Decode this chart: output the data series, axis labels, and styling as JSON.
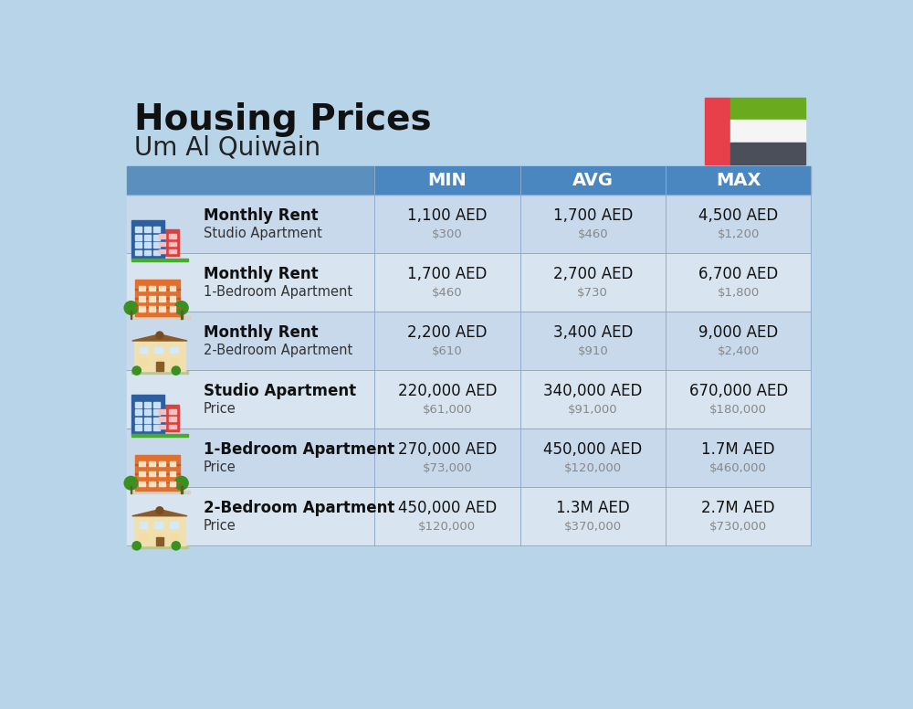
{
  "title": "Housing Prices",
  "subtitle": "Um Al Quiwain",
  "background_color": "#b8d4e8",
  "header_bg_color": "#4a86c0",
  "header_text_color": "#ffffff",
  "row_bg_even": "#c8d9ec",
  "row_bg_odd": "#d8e5f0",
  "col_labels": [
    "MIN",
    "AVG",
    "MAX"
  ],
  "rows": [
    {
      "label_bold": "Monthly Rent",
      "label_sub": "Studio Apartment",
      "min_aed": "1,100 AED",
      "min_usd": "$300",
      "avg_aed": "1,700 AED",
      "avg_usd": "$460",
      "max_aed": "4,500 AED",
      "max_usd": "$1,200",
      "icon_type": "blue_red"
    },
    {
      "label_bold": "Monthly Rent",
      "label_sub": "1-Bedroom Apartment",
      "min_aed": "1,700 AED",
      "min_usd": "$460",
      "avg_aed": "2,700 AED",
      "avg_usd": "$730",
      "max_aed": "6,700 AED",
      "max_usd": "$1,800",
      "icon_type": "orange_green"
    },
    {
      "label_bold": "Monthly Rent",
      "label_sub": "2-Bedroom Apartment",
      "min_aed": "2,200 AED",
      "min_usd": "$610",
      "avg_aed": "3,400 AED",
      "avg_usd": "$910",
      "max_aed": "9,000 AED",
      "max_usd": "$2,400",
      "icon_type": "beige_brown"
    },
    {
      "label_bold": "Studio Apartment",
      "label_sub": "Price",
      "min_aed": "220,000 AED",
      "min_usd": "$61,000",
      "avg_aed": "340,000 AED",
      "avg_usd": "$91,000",
      "max_aed": "670,000 AED",
      "max_usd": "$180,000",
      "icon_type": "blue_red"
    },
    {
      "label_bold": "1-Bedroom Apartment",
      "label_sub": "Price",
      "min_aed": "270,000 AED",
      "min_usd": "$73,000",
      "avg_aed": "450,000 AED",
      "avg_usd": "$120,000",
      "max_aed": "1.7M AED",
      "max_usd": "$460,000",
      "icon_type": "orange_green"
    },
    {
      "label_bold": "2-Bedroom Apartment",
      "label_sub": "Price",
      "min_aed": "450,000 AED",
      "min_usd": "$120,000",
      "avg_aed": "1.3M AED",
      "avg_usd": "$370,000",
      "max_aed": "2.7M AED",
      "max_usd": "$730,000",
      "icon_type": "beige_brown"
    }
  ],
  "flag": {
    "red": "#e8404a",
    "green": "#6aaa1e",
    "white": "#f5f5f5",
    "dark": "#4a4f5a"
  }
}
